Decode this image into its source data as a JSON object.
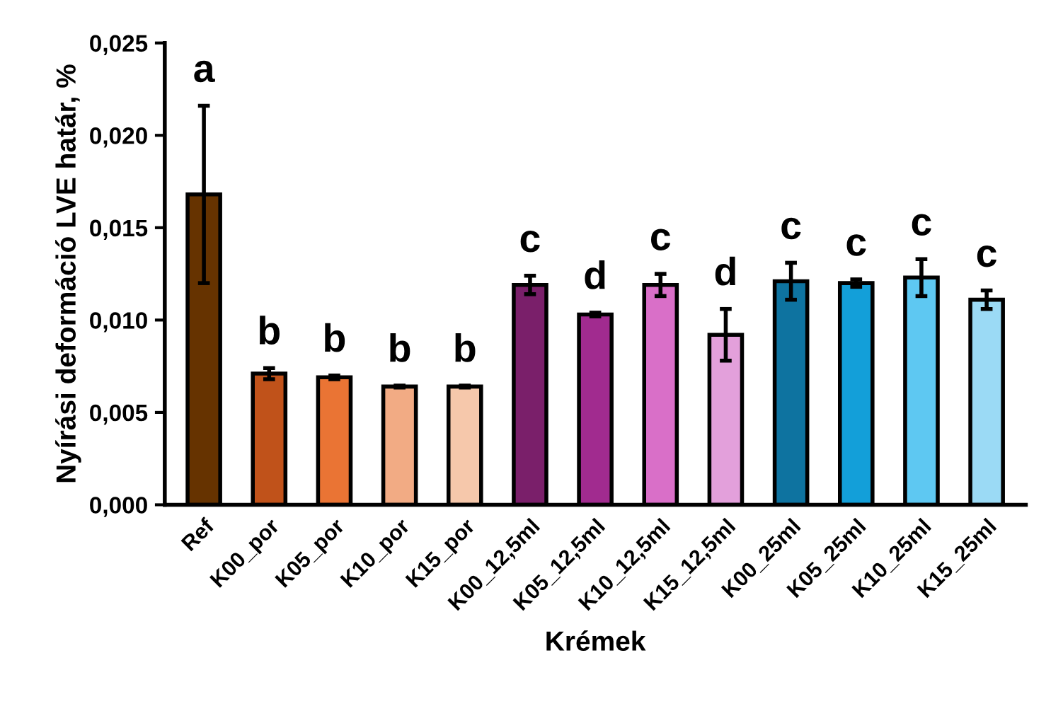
{
  "chart_data": {
    "type": "bar",
    "xlabel": "Krémek",
    "ylabel": "Nyírási deformáció LVE határ, %",
    "categories": [
      "Ref",
      "K00_por",
      "K05_por",
      "K10_por",
      "K15_por",
      "K00_12,5ml",
      "K05_12,5ml",
      "K10_12,5ml",
      "K15_12,5ml",
      "K00_25ml",
      "K05_25ml",
      "K10_25ml",
      "K15_25ml"
    ],
    "values": [
      0.0168,
      0.0071,
      0.0069,
      0.0064,
      0.0064,
      0.0119,
      0.0103,
      0.0119,
      0.0092,
      0.0121,
      0.012,
      0.0123,
      0.0111
    ],
    "errors": [
      0.0048,
      0.0003,
      0.0001,
      5e-05,
      5e-05,
      0.0005,
      0.0001,
      0.0006,
      0.0014,
      0.001,
      0.0002,
      0.001,
      0.0005
    ],
    "colors": [
      "#663300",
      "#c0521a",
      "#ea7434",
      "#f2ab84",
      "#f6c8ab",
      "#7a1f6a",
      "#a12b8f",
      "#d96fc8",
      "#e3a0db",
      "#0e73a0",
      "#139fd9",
      "#5ec8f2",
      "#9bdaf5"
    ],
    "ylim": [
      0,
      0.025
    ],
    "yticks": [
      {
        "value": 0,
        "label": "0,000"
      },
      {
        "value": 0.005,
        "label": "0,005"
      },
      {
        "value": 0.01,
        "label": "0,010"
      },
      {
        "value": 0.015,
        "label": "0,015"
      },
      {
        "value": 0.02,
        "label": "0,020"
      },
      {
        "value": 0.025,
        "label": "0,025"
      }
    ],
    "grid": false,
    "legend": false,
    "annotations": [
      "a",
      "b",
      "b",
      "b",
      "b",
      "c",
      "d",
      "c",
      "d",
      "c",
      "c",
      "c",
      "c"
    ]
  }
}
